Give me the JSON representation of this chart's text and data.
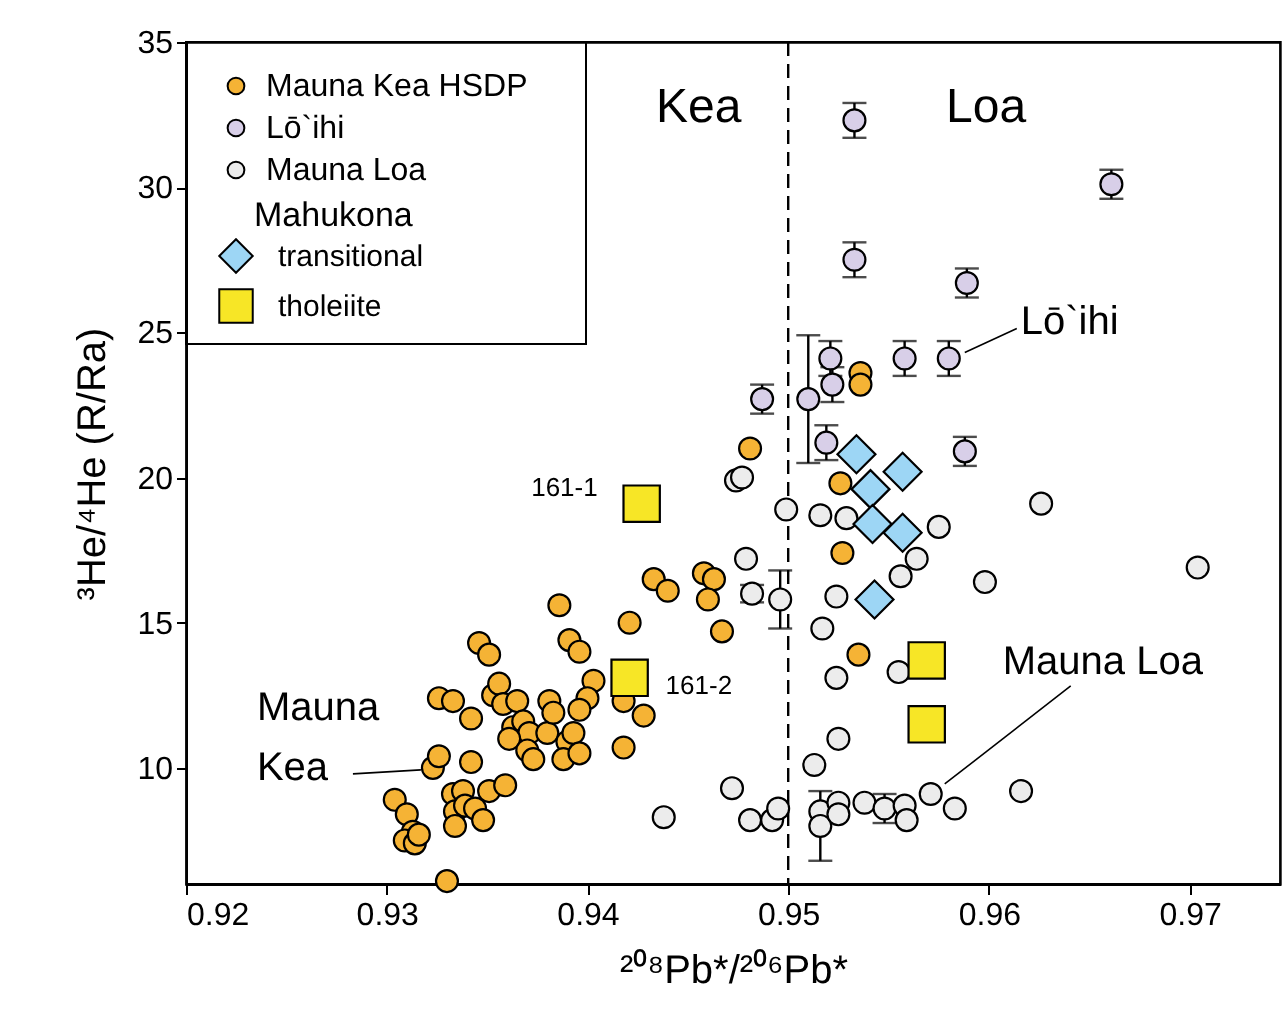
{
  "chart_data": {
    "type": "scatter",
    "xlabel": "²⁰⁸Pb*/²⁰⁶Pb*",
    "ylabel": "³He/⁴He (R/Ra)",
    "xlim": [
      0.92,
      0.9745
    ],
    "ylim": [
      6,
      35
    ],
    "xticks": [
      0.92,
      0.93,
      0.94,
      0.95,
      0.96,
      0.97
    ],
    "yticks": [
      10,
      15,
      20,
      25,
      30,
      35
    ],
    "grid": false,
    "legend": "top left",
    "legend_title": "Mahukona",
    "ref_lines": [
      {
        "axis": "x",
        "value": 0.95,
        "line_style": "dashed",
        "color": "#000000"
      }
    ],
    "annotations": [
      "Kea",
      "Loa",
      {
        "text": "Mauna Kea",
        "x": 0.9323,
        "y": 10.0
      },
      {
        "text": "Mauna Loa",
        "x": 0.9571,
        "y": 9.1
      },
      {
        "text": "Lō`ihi",
        "x": 0.958,
        "y": 24.1
      },
      {
        "text": "161-1",
        "x": 0.9427,
        "y": 19.1
      },
      {
        "text": "161-2",
        "x": 0.9421,
        "y": 13.1
      }
    ],
    "series": [
      {
        "name": "Mauna Kea HSDP",
        "color": "#f5b335",
        "marker": "circle",
        "x": [
          0.9304,
          0.931,
          0.9313,
          0.9309,
          0.9314,
          0.9316,
          0.9323,
          0.9326,
          0.9342,
          0.9326,
          0.9333,
          0.9342,
          0.9346,
          0.9351,
          0.9333,
          0.9338,
          0.9334,
          0.9339,
          0.9344,
          0.9348,
          0.9334,
          0.9351,
          0.9359,
          0.9353,
          0.9356,
          0.9358,
          0.9365,
          0.9363,
          0.9368,
          0.9371,
          0.9361,
          0.937,
          0.9373,
          0.938,
          0.9381,
          0.9383,
          0.9386,
          0.9391,
          0.9396,
          0.9403,
          0.94,
          0.9396,
          0.939,
          0.9393,
          0.9388,
          0.9396,
          0.9418,
          0.9421,
          0.9418,
          0.9428,
          0.9433,
          0.944,
          0.9458,
          0.9463,
          0.946,
          0.9467,
          0.933,
          0.9536,
          0.9536,
          0.9481,
          0.9526,
          0.9527,
          0.9535
        ],
        "values": [
          8.9,
          8.4,
          7.8,
          7.5,
          7.4,
          7.7,
          10.0,
          10.4,
          10.2,
          12.4,
          12.3,
          11.7,
          14.3,
          13.9,
          9.1,
          9.2,
          8.5,
          8.7,
          8.6,
          8.2,
          8.0,
          9.2,
          9.4,
          12.5,
          12.9,
          12.2,
          12.3,
          11.4,
          11.6,
          11.2,
          11.0,
          10.6,
          10.3,
          11.2,
          12.3,
          11.9,
          15.6,
          14.4,
          14.0,
          13.0,
          12.4,
          12.0,
          10.9,
          11.2,
          10.3,
          10.5,
          10.7,
          15.0,
          12.3,
          11.8,
          16.5,
          16.1,
          16.7,
          16.5,
          15.8,
          14.7,
          6.1,
          23.6,
          23.2,
          21.0,
          19.8,
          17.4,
          13.9
        ]
      },
      {
        "name": "Lō`ihi",
        "color": "#d8cfe8",
        "marker": "circle",
        "x": [
          0.9533,
          0.9661,
          0.9533,
          0.9589,
          0.9521,
          0.9558,
          0.958,
          0.9522,
          0.951,
          0.9487,
          0.9519,
          0.9588
        ],
        "values": [
          32.3,
          30.1,
          27.5,
          26.7,
          24.1,
          24.1,
          24.1,
          23.2,
          22.7,
          22.7,
          21.2,
          20.9
        ],
        "errors": [
          0.6,
          0.5,
          0.6,
          0.5,
          0.6,
          0.6,
          0.6,
          0.6,
          2.2,
          0.5,
          0.6,
          0.5
        ]
      },
      {
        "name": "Mauna Loa",
        "color": "#ececec",
        "marker": "circle",
        "x": [
          0.9474,
          0.9477,
          0.9499,
          0.9516,
          0.9529,
          0.9575,
          0.9626,
          0.9479,
          0.9564,
          0.9556,
          0.9598,
          0.9524,
          0.9704,
          0.9482,
          0.9496,
          0.9517,
          0.9524,
          0.9555,
          0.9525,
          0.9513,
          0.9472,
          0.9481,
          0.9492,
          0.9495,
          0.9516,
          0.9516,
          0.9525,
          0.9525,
          0.9538,
          0.9548,
          0.9558,
          0.9559,
          0.9571,
          0.9583,
          0.9616,
          0.9438
        ],
        "values": [
          19.9,
          20.0,
          18.9,
          18.7,
          18.6,
          18.3,
          19.1,
          17.2,
          17.2,
          16.6,
          16.4,
          15.9,
          16.9,
          16.0,
          15.8,
          14.8,
          13.1,
          13.3,
          11.0,
          10.1,
          9.3,
          8.2,
          8.2,
          8.6,
          8.5,
          8.0,
          8.8,
          8.4,
          8.8,
          8.6,
          8.7,
          8.2,
          9.1,
          8.6,
          9.2,
          8.3
        ],
        "errors": [
          null,
          null,
          null,
          null,
          null,
          null,
          null,
          null,
          null,
          null,
          null,
          null,
          null,
          0.3,
          1.0,
          null,
          null,
          null,
          null,
          null,
          null,
          null,
          null,
          null,
          null,
          1.2,
          null,
          null,
          null,
          0.5,
          null,
          null,
          null,
          null,
          null,
          null
        ]
      },
      {
        "name": "transitional",
        "color": "#9dd6f5",
        "marker": "diamond",
        "x": [
          0.9534,
          0.9557,
          0.9541,
          0.9542,
          0.9557,
          0.9543
        ],
        "values": [
          20.8,
          20.2,
          19.6,
          18.4,
          18.1,
          15.8
        ]
      },
      {
        "name": "tholeiite",
        "color": "#f7e626",
        "marker": "square",
        "x": [
          0.9569,
          0.9569,
          0.9427,
          0.9421
        ],
        "values": [
          13.7,
          11.5,
          19.1,
          13.1
        ]
      }
    ]
  }
}
